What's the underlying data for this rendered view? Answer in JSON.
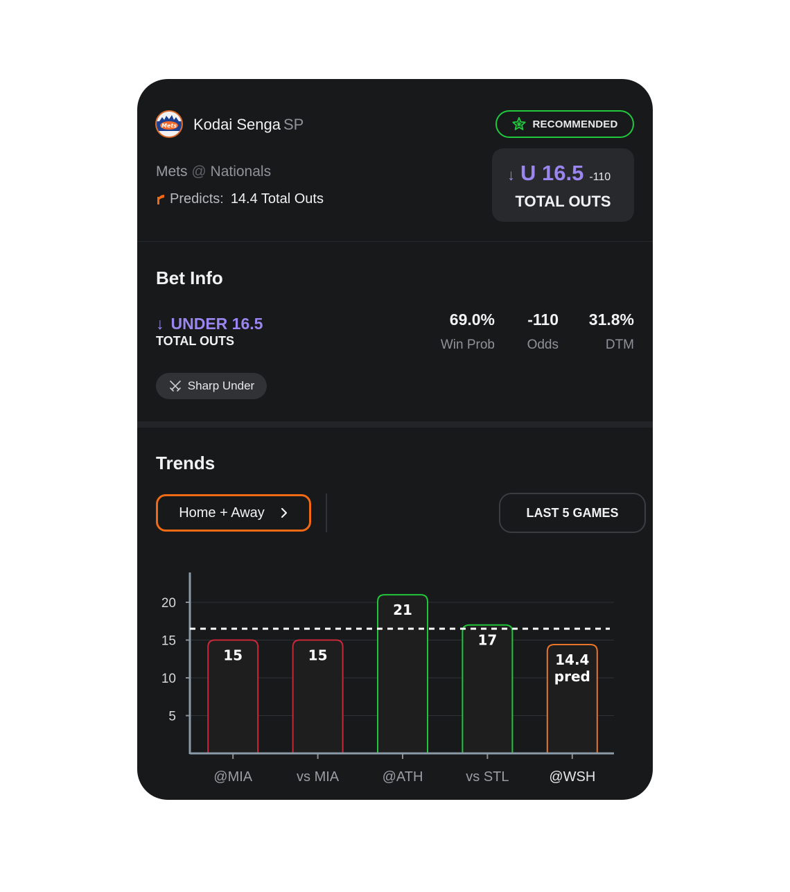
{
  "header": {
    "player_name": "Kodai Senga",
    "position": "SP",
    "team": "Mets",
    "opponent_sep": "@",
    "opponent": "Nationals",
    "predicts_label": "Predicts:",
    "predicts_value": "14.4 Total Outs",
    "badge": "RECOMMENDED",
    "line": "U 16.5",
    "line_odds": "-110",
    "line_market": "TOTAL OUTS",
    "accent_purple": "#9b86f0",
    "accent_green": "#21c93d",
    "accent_orange": "#f06a15"
  },
  "bet_info": {
    "title": "Bet Info",
    "pick": "UNDER 16.5",
    "market": "TOTAL OUTS",
    "stats": [
      {
        "value": "69.0%",
        "label": "Win Prob"
      },
      {
        "value": "-110",
        "label": "Odds"
      },
      {
        "value": "31.8%",
        "label": "DTM"
      }
    ],
    "tag": "Sharp Under"
  },
  "trends": {
    "title": "Trends",
    "filter": "Home + Away",
    "range": "LAST 5 GAMES"
  },
  "chart_data": {
    "type": "bar",
    "categories": [
      "@MIA",
      "vs MIA",
      "@ATH",
      "vs STL",
      "@WSH"
    ],
    "values": [
      15,
      15,
      21,
      17,
      14.4
    ],
    "labels": [
      "15",
      "15",
      "21",
      "17",
      "14.4"
    ],
    "pred_label": "pred",
    "status": [
      "miss",
      "miss",
      "hit",
      "hit",
      "pred"
    ],
    "line": 16.5,
    "yticks": [
      5,
      10,
      15,
      20
    ],
    "ylim": [
      0,
      24
    ],
    "grid": true,
    "colors": {
      "hit": "#22c63a",
      "miss": "#c8283a",
      "pred": "#e8752a"
    }
  }
}
